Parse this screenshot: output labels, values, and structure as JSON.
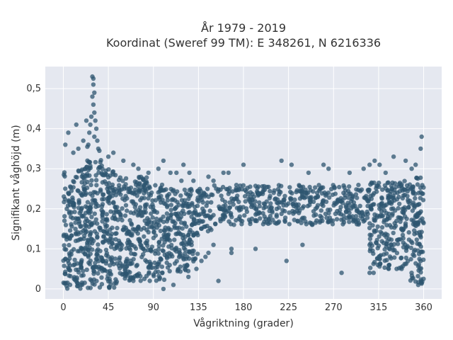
{
  "chart_data": {
    "type": "scatter",
    "title_line1": "År 1979 - 2019",
    "title_line2": "Koordinat (Sweref 99 TM): E 348261, N 6216336",
    "xlabel": "Vågriktning (grader)",
    "ylabel": "Signifikant våghöjd (m)",
    "xlim": [
      -18,
      378
    ],
    "ylim": [
      -0.025,
      0.555
    ],
    "x_ticks": [
      0,
      45,
      90,
      135,
      180,
      225,
      270,
      315,
      360
    ],
    "y_ticks": [
      0,
      0.1,
      0.2,
      0.3,
      0.4,
      0.5
    ],
    "y_tick_labels": [
      "0",
      "0,1",
      "0,2",
      "0,3",
      "0,4",
      "0,5"
    ],
    "grid": true,
    "legend": "none",
    "marker_color": "#2e5570",
    "bands": [
      {
        "x": [
          0,
          20
        ],
        "y": [
          0.0,
          0.3
        ]
      },
      {
        "x": [
          20,
          40
        ],
        "y": [
          0.0,
          0.33
        ]
      },
      {
        "x": [
          40,
          55
        ],
        "y": [
          0.0,
          0.3
        ]
      },
      {
        "x": [
          55,
          85
        ],
        "y": [
          0.02,
          0.28
        ]
      },
      {
        "x": [
          85,
          105
        ],
        "y": [
          0.02,
          0.26
        ]
      },
      {
        "x": [
          105,
          135
        ],
        "y": [
          0.04,
          0.25
        ]
      },
      {
        "x": [
          135,
          150
        ],
        "y": [
          0.14,
          0.25
        ]
      },
      {
        "x": [
          150,
          305
        ],
        "y": [
          0.16,
          0.26
        ]
      },
      {
        "x": [
          305,
          345
        ],
        "y": [
          0.05,
          0.27
        ]
      },
      {
        "x": [
          345,
          360
        ],
        "y": [
          0.01,
          0.28
        ]
      }
    ],
    "outliers": [
      {
        "x": 29,
        "y": 0.53
      },
      {
        "x": 30,
        "y": 0.525
      },
      {
        "x": 30,
        "y": 0.51
      },
      {
        "x": 31,
        "y": 0.49
      },
      {
        "x": 29,
        "y": 0.48
      },
      {
        "x": 30,
        "y": 0.46
      },
      {
        "x": 31,
        "y": 0.44
      },
      {
        "x": 28,
        "y": 0.43
      },
      {
        "x": 32,
        "y": 0.42
      },
      {
        "x": 27,
        "y": 0.41
      },
      {
        "x": 33,
        "y": 0.4
      },
      {
        "x": 26,
        "y": 0.39
      },
      {
        "x": 31,
        "y": 0.38
      },
      {
        "x": 34,
        "y": 0.37
      },
      {
        "x": 25,
        "y": 0.36
      },
      {
        "x": 35,
        "y": 0.35
      },
      {
        "x": 24,
        "y": 0.355
      },
      {
        "x": 36,
        "y": 0.345
      },
      {
        "x": 23,
        "y": 0.42
      },
      {
        "x": 15,
        "y": 0.35
      },
      {
        "x": 10,
        "y": 0.34
      },
      {
        "x": 5,
        "y": 0.39
      },
      {
        "x": 2,
        "y": 0.36
      },
      {
        "x": 13,
        "y": 0.41
      },
      {
        "x": 20,
        "y": 0.37
      },
      {
        "x": 45,
        "y": 0.33
      },
      {
        "x": 50,
        "y": 0.34
      },
      {
        "x": 60,
        "y": 0.32
      },
      {
        "x": 70,
        "y": 0.31
      },
      {
        "x": 75,
        "y": 0.3
      },
      {
        "x": 85,
        "y": 0.29
      },
      {
        "x": 95,
        "y": 0.3
      },
      {
        "x": 100,
        "y": 0.32
      },
      {
        "x": 107,
        "y": 0.29
      },
      {
        "x": 113,
        "y": 0.29
      },
      {
        "x": 118,
        "y": 0.27
      },
      {
        "x": 120,
        "y": 0.31
      },
      {
        "x": 126,
        "y": 0.29
      },
      {
        "x": 130,
        "y": 0.27
      },
      {
        "x": 145,
        "y": 0.28
      },
      {
        "x": 150,
        "y": 0.27
      },
      {
        "x": 160,
        "y": 0.29
      },
      {
        "x": 165,
        "y": 0.29
      },
      {
        "x": 180,
        "y": 0.31
      },
      {
        "x": 218,
        "y": 0.32
      },
      {
        "x": 228,
        "y": 0.31
      },
      {
        "x": 245,
        "y": 0.29
      },
      {
        "x": 260,
        "y": 0.31
      },
      {
        "x": 265,
        "y": 0.3
      },
      {
        "x": 286,
        "y": 0.29
      },
      {
        "x": 300,
        "y": 0.3
      },
      {
        "x": 306,
        "y": 0.31
      },
      {
        "x": 311,
        "y": 0.32
      },
      {
        "x": 316,
        "y": 0.31
      },
      {
        "x": 322,
        "y": 0.29
      },
      {
        "x": 330,
        "y": 0.33
      },
      {
        "x": 342,
        "y": 0.32
      },
      {
        "x": 348,
        "y": 0.3
      },
      {
        "x": 352,
        "y": 0.31
      },
      {
        "x": 357,
        "y": 0.35
      },
      {
        "x": 358,
        "y": 0.38
      },
      {
        "x": 142,
        "y": 0.08
      },
      {
        "x": 145,
        "y": 0.09
      },
      {
        "x": 150,
        "y": 0.11
      },
      {
        "x": 155,
        "y": 0.02
      },
      {
        "x": 168,
        "y": 0.1
      },
      {
        "x": 168,
        "y": 0.09
      },
      {
        "x": 192,
        "y": 0.1
      },
      {
        "x": 223,
        "y": 0.07
      },
      {
        "x": 239,
        "y": 0.11
      },
      {
        "x": 278,
        "y": 0.04
      },
      {
        "x": 306,
        "y": 0.04
      },
      {
        "x": 310,
        "y": 0.04
      },
      {
        "x": 325,
        "y": 0.05
      },
      {
        "x": 333,
        "y": 0.05
      },
      {
        "x": 338,
        "y": 0.05
      },
      {
        "x": 125,
        "y": 0.03
      },
      {
        "x": 133,
        "y": 0.05
      },
      {
        "x": 138,
        "y": 0.07
      },
      {
        "x": 100,
        "y": 0.0
      },
      {
        "x": 110,
        "y": 0.01
      }
    ]
  }
}
